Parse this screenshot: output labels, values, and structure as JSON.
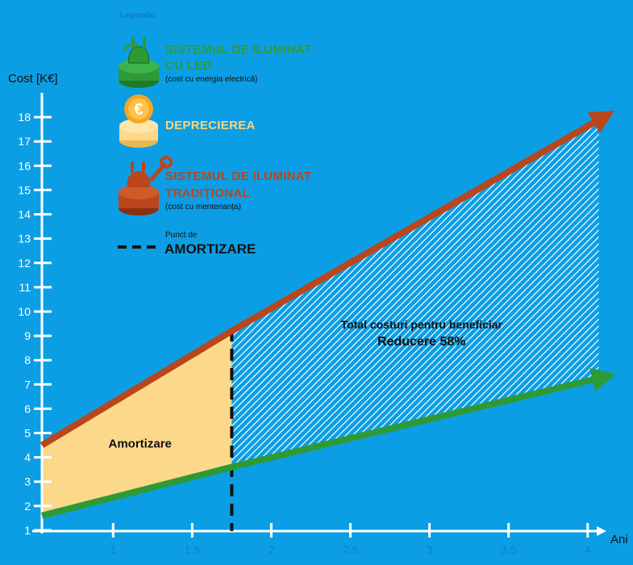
{
  "chart_data": {
    "type": "line",
    "xlabel": "Ani",
    "ylabel": "Cost [K€]",
    "x_ticks": [
      "1",
      "1.5",
      "2",
      "2.5",
      "3",
      "3.5",
      "4"
    ],
    "y_ticks": [
      "1",
      "2",
      "3",
      "4",
      "5",
      "6",
      "7",
      "8",
      "9",
      "10",
      "11",
      "12",
      "13",
      "14",
      "15",
      "16",
      "17",
      "18"
    ],
    "xlim": [
      0.55,
      4.2
    ],
    "ylim": [
      0.5,
      19
    ],
    "series": [
      {
        "name": "SISTEMUL DE ILUMINAT CU LED",
        "color": "#2e9a36",
        "x": [
          0.55,
          1.75,
          4.1
        ],
        "y": [
          1.6,
          3.6,
          7.3
        ]
      },
      {
        "name": "SISTEMUL DE ILUMINAT TRADIȚIONAL",
        "color": "#b9461c",
        "x": [
          0.55,
          1.75,
          4.1
        ],
        "y": [
          4.5,
          9.2,
          18.0
        ]
      }
    ],
    "break_even_x": 1.75,
    "legend": {
      "title": "Legenda:",
      "items": [
        {
          "line1": "SISTEMUL DE ILUMINAT",
          "line2": "CU LED",
          "note": "(cost cu energia electrică)",
          "color": "#2e9a36",
          "icon": "plug-icon"
        },
        {
          "line1": "DEPRECIEREA",
          "line2": "",
          "note": "",
          "color": "#ffd37a",
          "icon": "euro-coin-icon"
        },
        {
          "line1": "SISTEMUL DE ILUMINAT",
          "line2": "TRADIȚIONAL",
          "note": "(cost cu mentenanța)",
          "color": "#b9461c",
          "icon": "wrench-plug-icon"
        }
      ],
      "breakeven_small": "Punct de",
      "breakeven_big": "AMORTIZARE"
    },
    "annotations": {
      "amortizare": "Amortizare",
      "total": "Total costuri pentru beneficiar",
      "reduction": "Reducere 58%"
    },
    "colors": {
      "background": "#0c9ee4",
      "depreciation_fill": "#fcd88a",
      "hatch": "#ffffff"
    }
  }
}
